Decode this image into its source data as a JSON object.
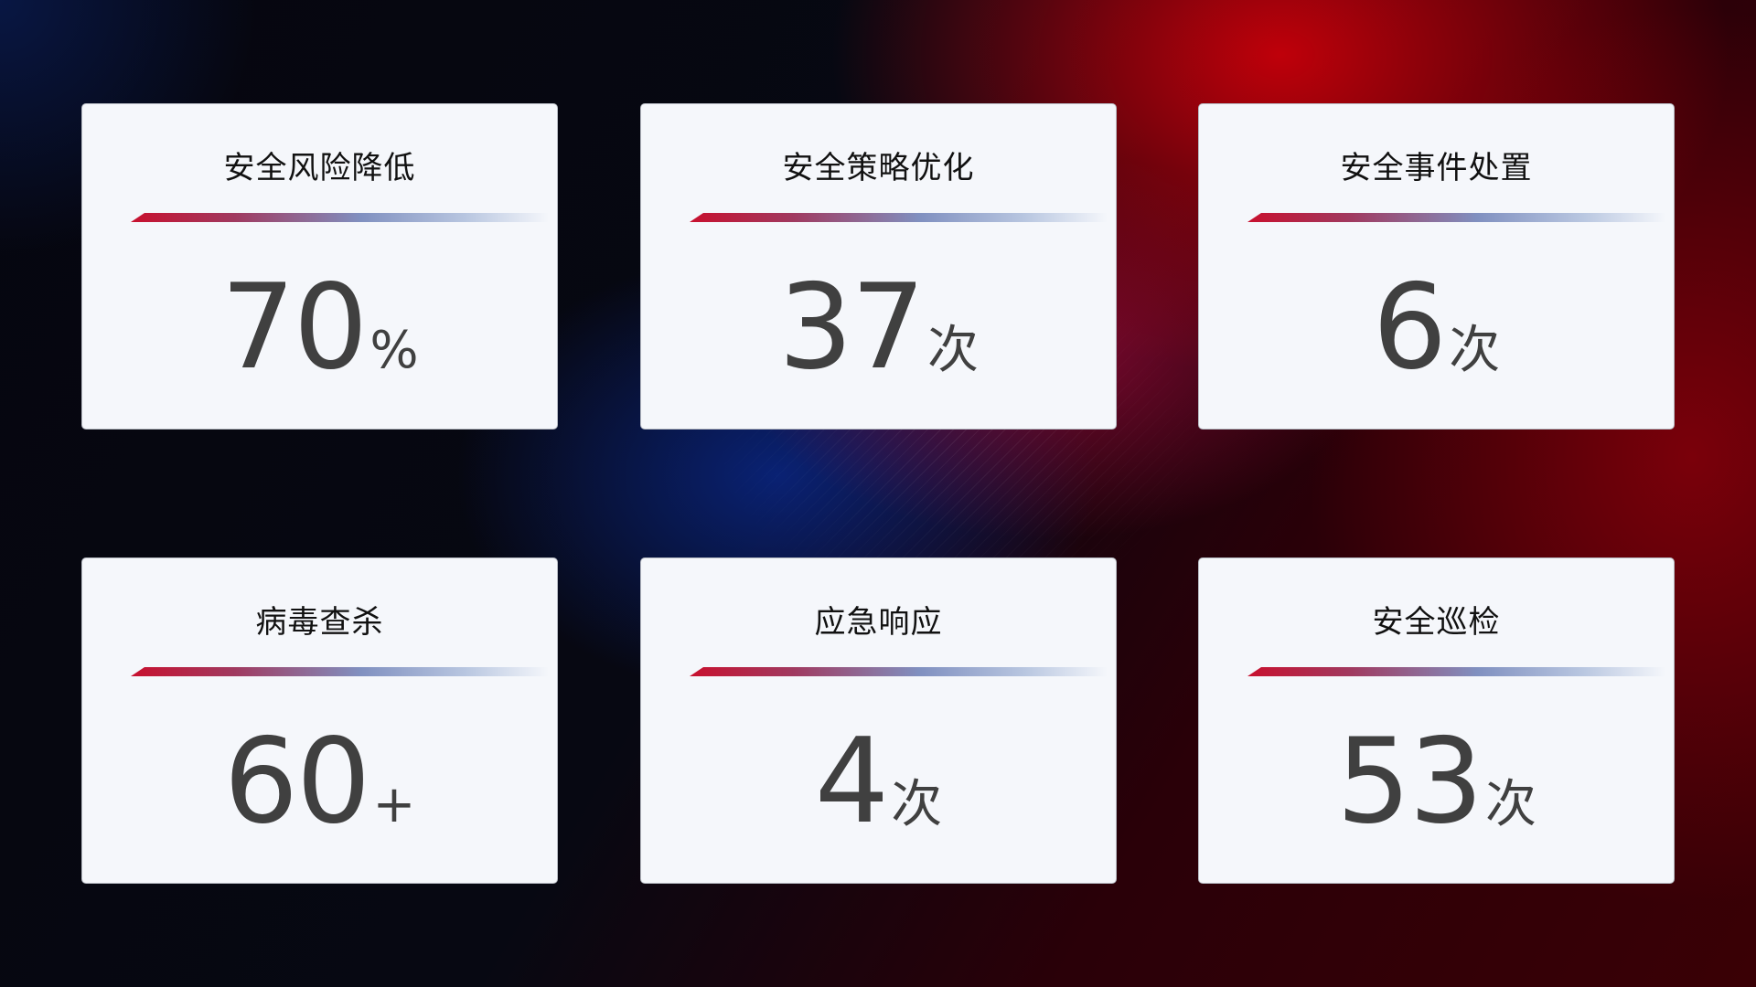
{
  "cards": [
    {
      "title": "安全风险降低",
      "value": "70",
      "unit": "%"
    },
    {
      "title": "安全策略优化",
      "value": "37",
      "unit": "次"
    },
    {
      "title": "安全事件处置",
      "value": "6",
      "unit": "次"
    },
    {
      "title": "病毒查杀",
      "value": "60",
      "unit": "+"
    },
    {
      "title": "应急响应",
      "value": "4",
      "unit": "次"
    },
    {
      "title": "安全巡检",
      "value": "53",
      "unit": "次"
    }
  ],
  "colors": {
    "accent_red": "#c8102e",
    "accent_blue": "#8090c0",
    "card_bg": "#f5f7fb",
    "value_text": "#404040"
  }
}
